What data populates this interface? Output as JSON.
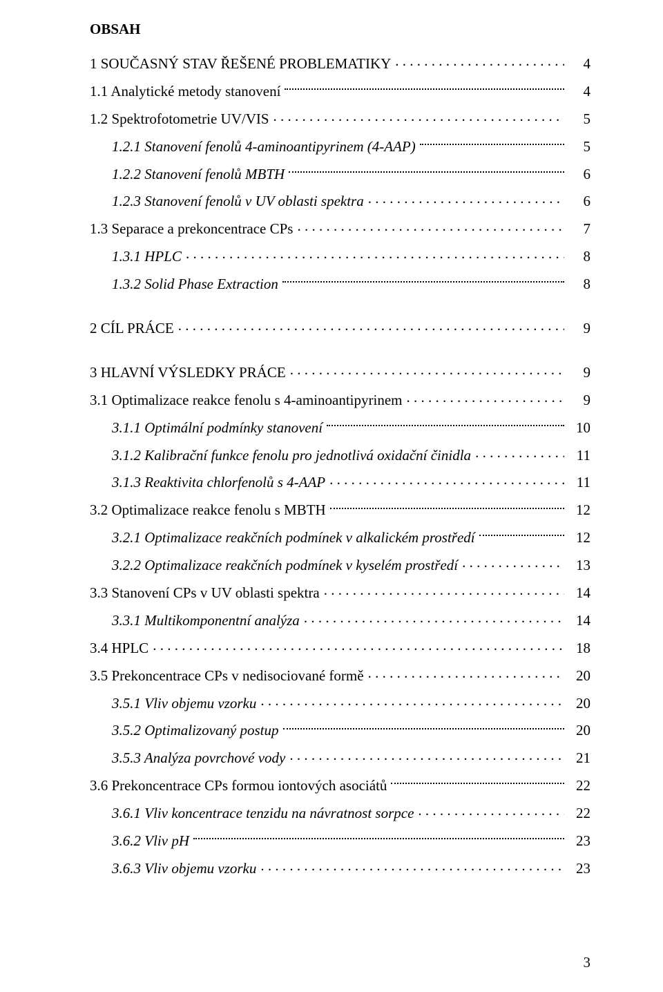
{
  "heading": "OBSAH",
  "page_number": "3",
  "styles": {
    "font_family": "Times New Roman",
    "base_fontsize_pt": 16,
    "text_color": "#000000",
    "background_color": "#ffffff"
  },
  "toc": [
    {
      "label": "1 SOUČASNÝ STAV ŘEŠENÉ PROBLEMATIKY",
      "page": "4",
      "indent": 0,
      "leader": "dotsWide",
      "italic": false,
      "spacer_after": false
    },
    {
      "label": "1.1 Analytické metody stanovení",
      "page": "4",
      "indent": 0,
      "leader": "dots",
      "italic": false,
      "spacer_after": false
    },
    {
      "label": "1.2 Spektrofotometrie UV/VIS",
      "page": "5",
      "indent": 0,
      "leader": "dotsWide",
      "italic": false,
      "spacer_after": false
    },
    {
      "label": "1.2.1 Stanovení fenolů 4-aminoantipyrinem (4-AAP)",
      "page": "5",
      "indent": 1,
      "leader": "dots",
      "italic": true,
      "spacer_after": false
    },
    {
      "label": "1.2.2 Stanovení fenolů MBTH",
      "page": "6",
      "indent": 1,
      "leader": "dots",
      "italic": true,
      "spacer_after": false
    },
    {
      "label": "1.2.3 Stanovení fenolů v UV oblasti spektra",
      "page": "6",
      "indent": 1,
      "leader": "dotsWide",
      "italic": true,
      "spacer_after": false
    },
    {
      "label": "1.3 Separace a prekoncentrace CPs",
      "page": "7",
      "indent": 0,
      "leader": "dotsWide",
      "italic": false,
      "spacer_after": false
    },
    {
      "label": "1.3.1 HPLC",
      "page": "8",
      "indent": 1,
      "leader": "dotsWide",
      "italic": true,
      "spacer_after": false
    },
    {
      "label": "1.3.2 Solid Phase Extraction",
      "page": "8",
      "indent": 1,
      "leader": "dots",
      "italic": true,
      "spacer_after": true
    },
    {
      "label": "2 CÍL PRÁCE",
      "page": "9",
      "indent": 0,
      "leader": "dotsWide",
      "italic": false,
      "spacer_after": true
    },
    {
      "label": "3 HLAVNÍ VÝSLEDKY PRÁCE",
      "page": "9",
      "indent": 0,
      "leader": "dotsWide",
      "italic": false,
      "spacer_after": false
    },
    {
      "label": "3.1 Optimalizace reakce fenolu s 4-aminoantipyrinem",
      "page": "9",
      "indent": 0,
      "leader": "dotsWide",
      "italic": false,
      "spacer_after": false
    },
    {
      "label": "3.1.1 Optimální podmínky stanovení",
      "page": "10",
      "indent": 1,
      "leader": "dots",
      "italic": true,
      "spacer_after": false
    },
    {
      "label": "3.1.2 Kalibrační funkce fenolu pro jednotlivá oxidační činidla",
      "page": "11",
      "indent": 1,
      "leader": "dotsWide",
      "italic": true,
      "spacer_after": false
    },
    {
      "label": "3.1.3 Reaktivita chlorfenolů s 4-AAP",
      "page": "11",
      "indent": 1,
      "leader": "dotsWide",
      "italic": true,
      "spacer_after": false
    },
    {
      "label": "3.2 Optimalizace reakce fenolu s MBTH",
      "page": "12",
      "indent": 0,
      "leader": "dots",
      "italic": false,
      "spacer_after": false
    },
    {
      "label": "3.2.1 Optimalizace reakčních podmínek v alkalickém prostředí",
      "page": "12",
      "indent": 1,
      "leader": "dots",
      "italic": true,
      "spacer_after": false
    },
    {
      "label": "3.2.2 Optimalizace reakčních podmínek v kyselém prostředí",
      "page": "13",
      "indent": 1,
      "leader": "dotsWide",
      "italic": true,
      "spacer_after": false
    },
    {
      "label": "3.3 Stanovení CPs v UV oblasti spektra",
      "page": "14",
      "indent": 0,
      "leader": "dotsWide",
      "italic": false,
      "spacer_after": false
    },
    {
      "label": "3.3.1 Multikomponentní analýza",
      "page": "14",
      "indent": 1,
      "leader": "dotsWide",
      "italic": true,
      "spacer_after": false
    },
    {
      "label": "3.4 HPLC",
      "page": "18",
      "indent": 0,
      "leader": "dotsWide",
      "italic": false,
      "spacer_after": false
    },
    {
      "label": "3.5 Prekoncentrace CPs v nedisociované formě",
      "page": "20",
      "indent": 0,
      "leader": "dotsWide",
      "italic": false,
      "spacer_after": false
    },
    {
      "label": "3.5.1 Vliv objemu vzorku",
      "page": "20",
      "indent": 1,
      "leader": "dotsWide",
      "italic": true,
      "spacer_after": false
    },
    {
      "label": "3.5.2 Optimalizovaný postup",
      "page": "20",
      "indent": 1,
      "leader": "dots",
      "italic": true,
      "spacer_after": false
    },
    {
      "label": "3.5.3 Analýza povrchové vody",
      "page": "21",
      "indent": 1,
      "leader": "dotsWide",
      "italic": true,
      "spacer_after": false
    },
    {
      "label": "3.6 Prekoncentrace CPs formou iontových asociátů",
      "page": "22",
      "indent": 0,
      "leader": "dots",
      "italic": false,
      "spacer_after": false
    },
    {
      "label": "3.6.1 Vliv koncentrace tenzidu na návratnost sorpce",
      "page": "22",
      "indent": 1,
      "leader": "dotsWide",
      "italic": true,
      "spacer_after": false
    },
    {
      "label": "3.6.2 Vliv pH",
      "page": "23",
      "indent": 1,
      "leader": "dots",
      "italic": true,
      "spacer_after": false
    },
    {
      "label": "3.6.3 Vliv objemu vzorku",
      "page": "23",
      "indent": 1,
      "leader": "dotsWide",
      "italic": true,
      "spacer_after": false
    }
  ]
}
